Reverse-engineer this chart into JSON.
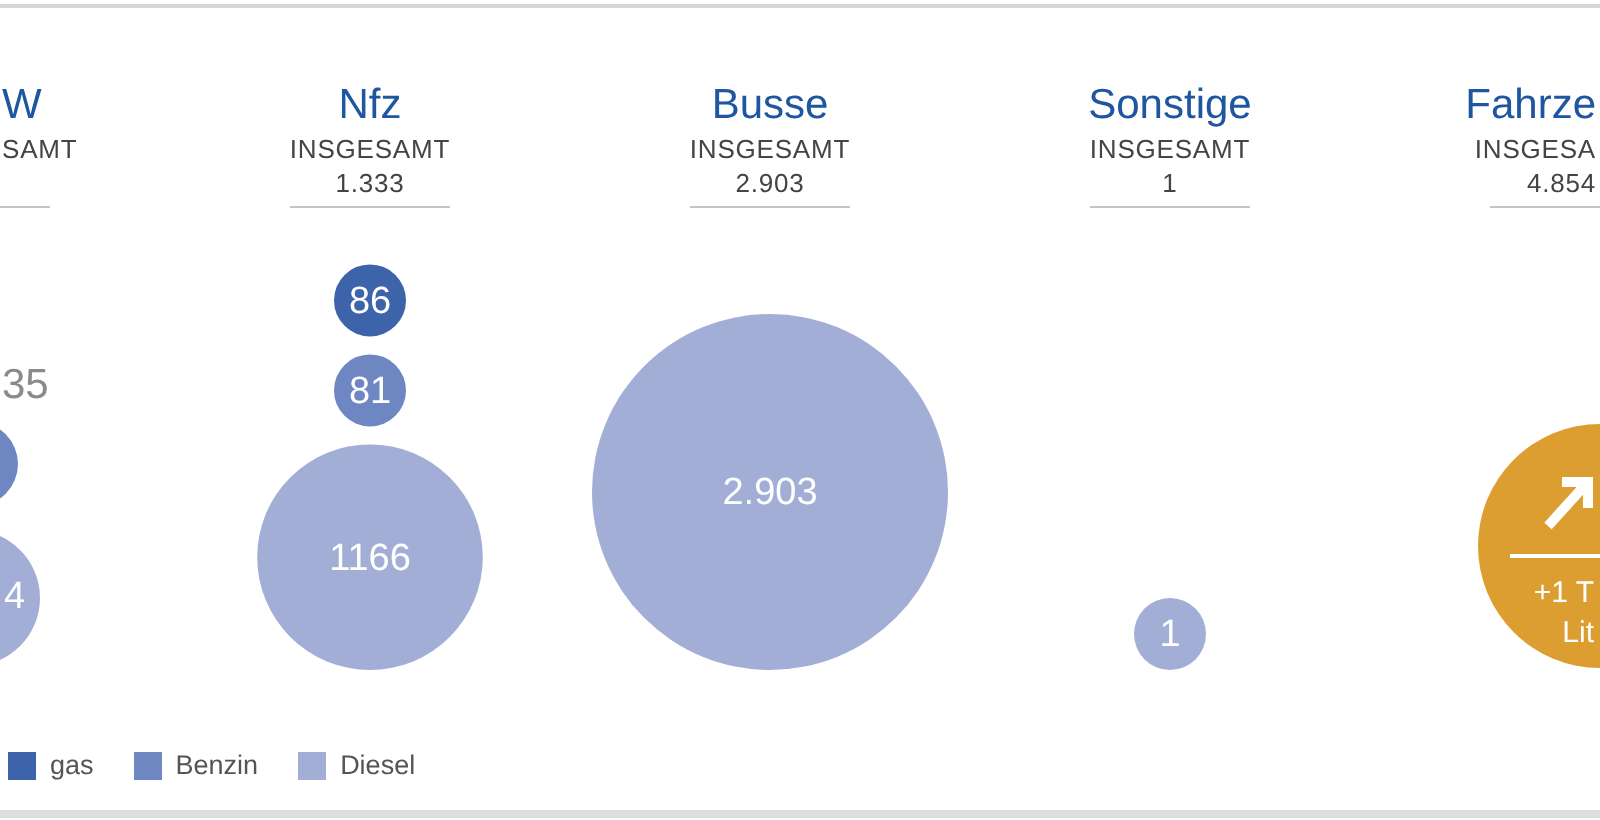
{
  "chart_data": {
    "type": "other",
    "categories": [
      "W",
      "Nfz",
      "Busse",
      "Sonstige",
      "Fahrze"
    ],
    "totals": [
      null,
      "1.333",
      "2.903",
      "1",
      "4.854"
    ],
    "series": [
      {
        "name": "gas",
        "color": "#3d63aa",
        "values": [
          null,
          86,
          null,
          null,
          null
        ],
        "value_labels": [
          null,
          "86",
          null,
          null,
          null
        ]
      },
      {
        "name": "Benzin",
        "color": "#6e87c2",
        "values": [
          null,
          81,
          null,
          null,
          null
        ],
        "value_labels": [
          null,
          "81",
          null,
          null,
          null
        ]
      },
      {
        "name": "Diesel",
        "color": "#a2aed6",
        "values": [
          null,
          1166,
          2903,
          1,
          null
        ],
        "value_labels": [
          null,
          "1166",
          "2.903",
          "1",
          null
        ]
      }
    ],
    "annotations": [
      "SAMT",
      "INSGESAMT",
      "INSGESAMT",
      "INSGESAMT",
      "INSGESA",
      "35",
      "4",
      "+1 T",
      "Lit"
    ],
    "legend": "bottom left"
  }
}
